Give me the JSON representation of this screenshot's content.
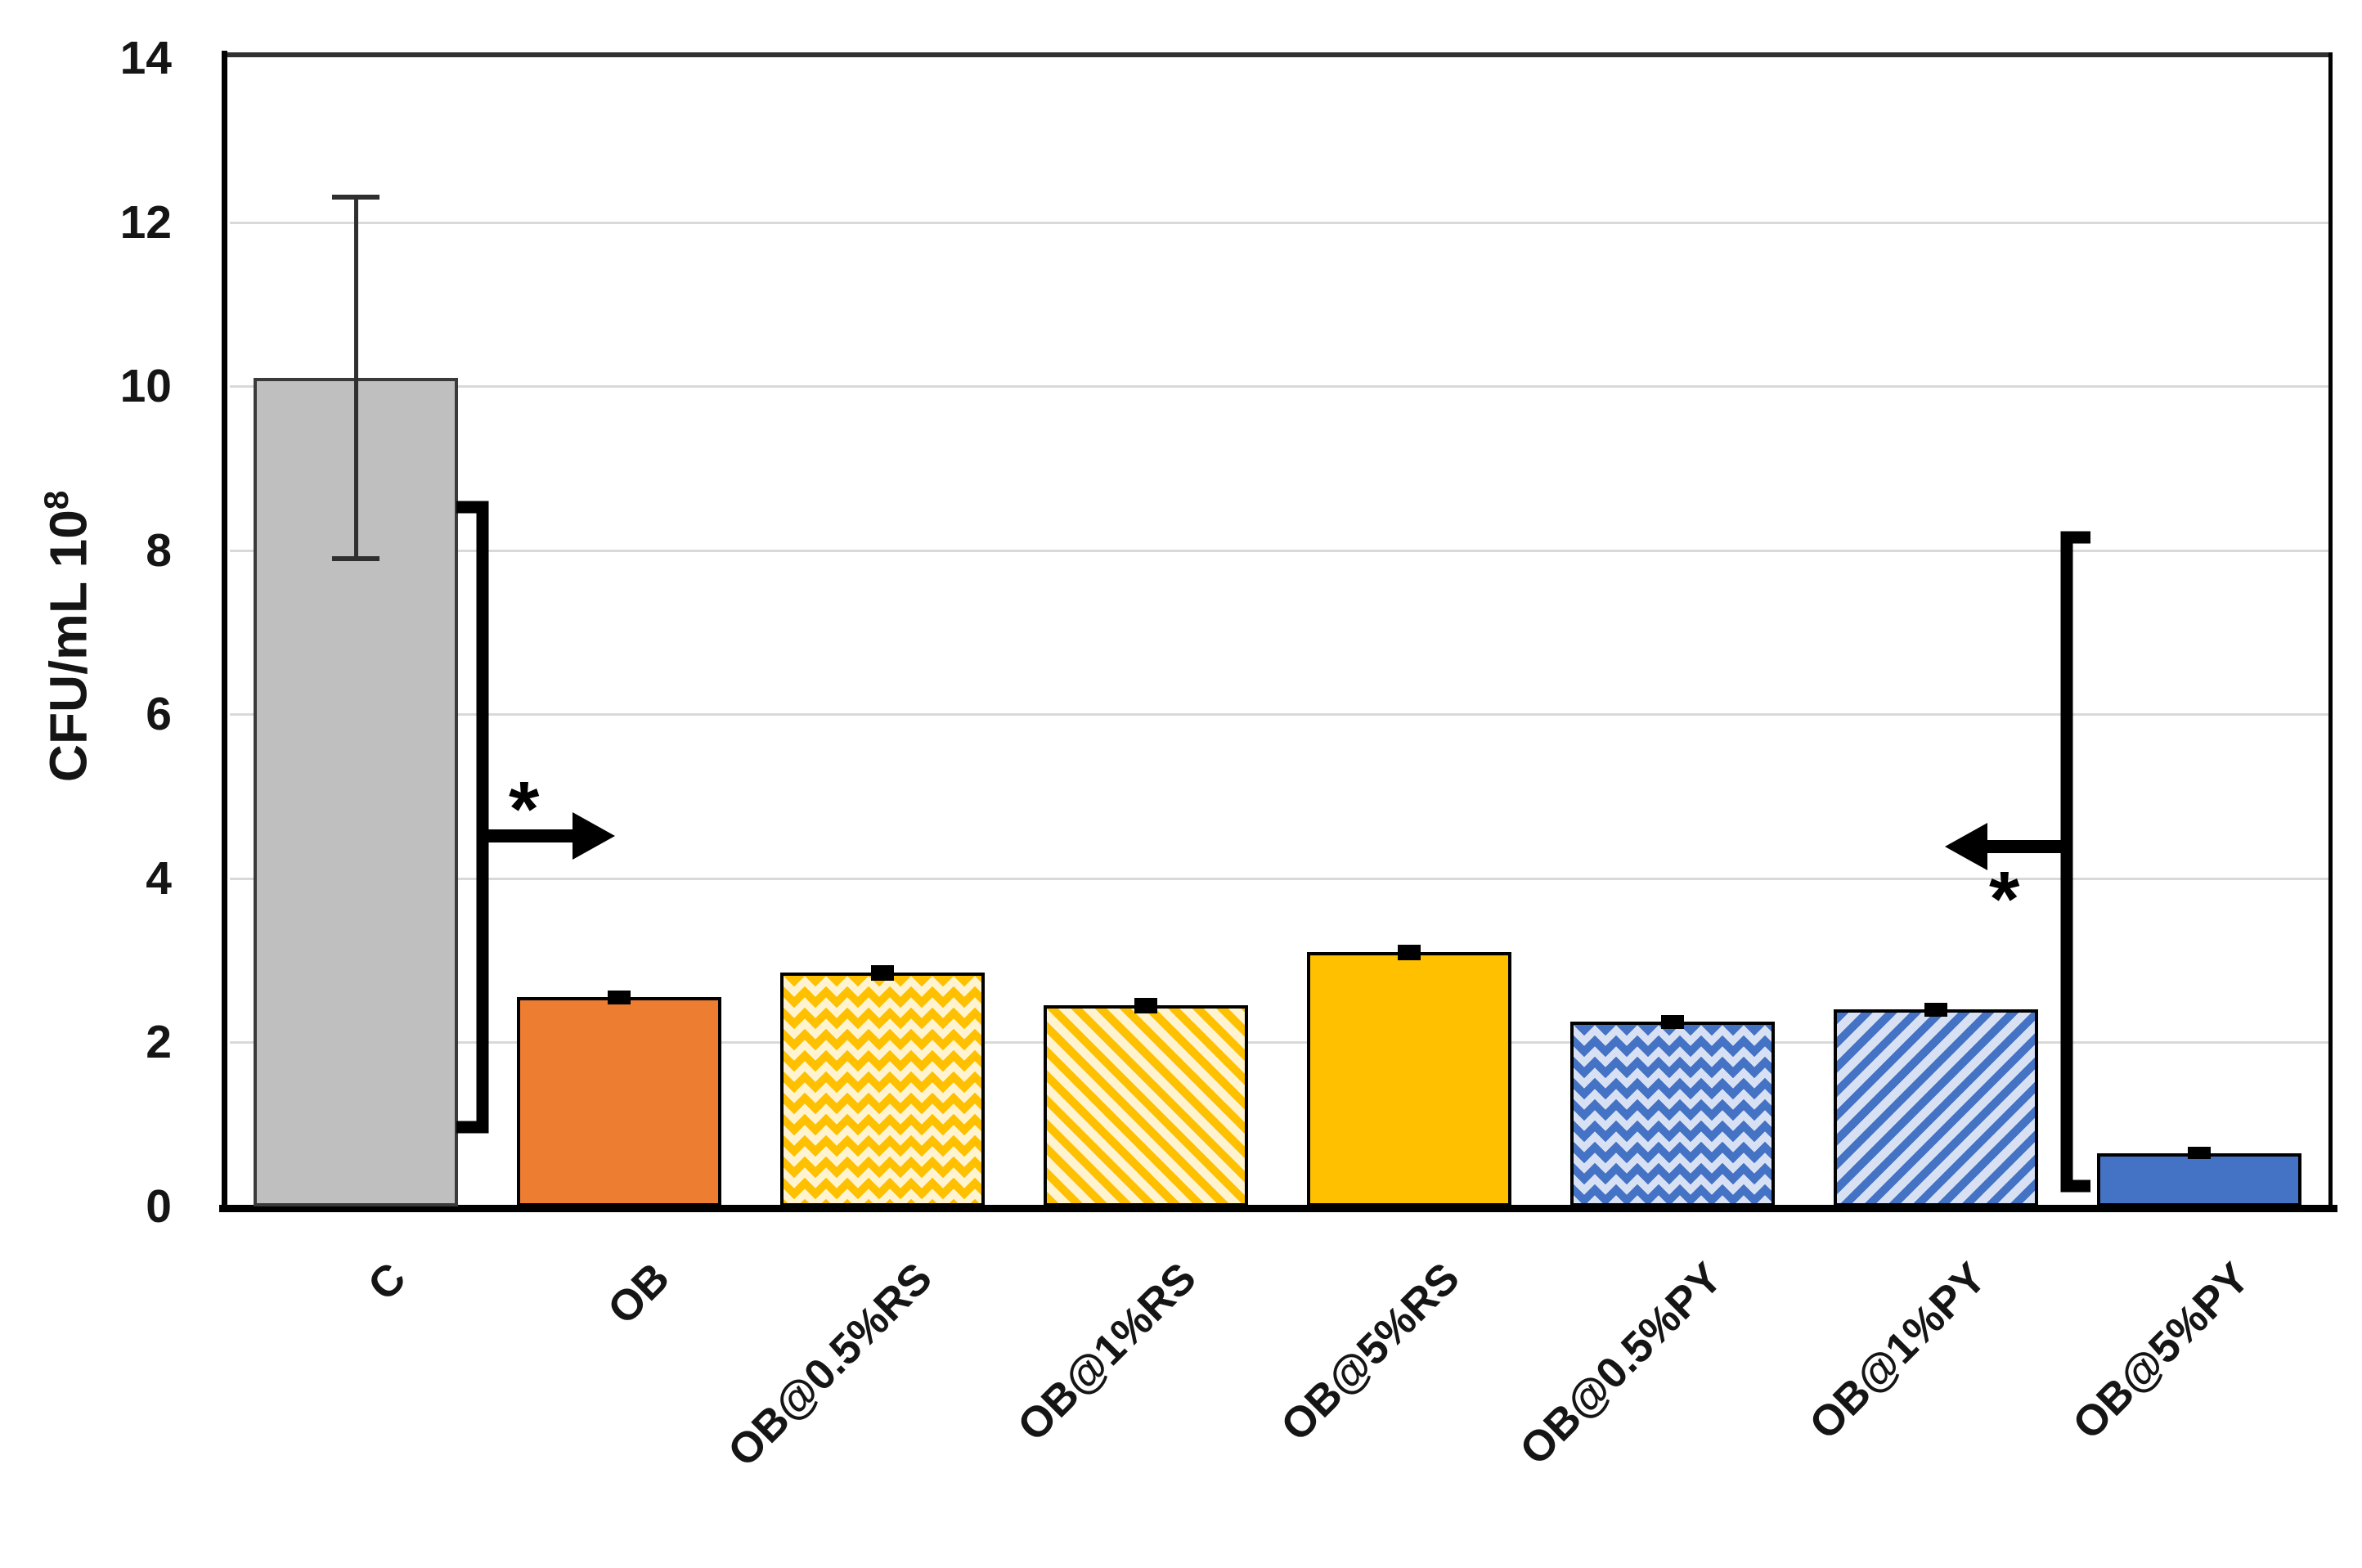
{
  "chart_data": {
    "type": "bar",
    "title": "",
    "ylabel": "CFU/mL 10⁸",
    "ylabel_base": "CFU/mL 10",
    "ylabel_exponent": "8",
    "xlabel": "",
    "ylim": [
      0,
      14
    ],
    "yticks": [
      0,
      2,
      4,
      6,
      8,
      10,
      12,
      14
    ],
    "grid": "horizontal",
    "legend": "none",
    "categories": [
      "C",
      "OB",
      "OB@0.5%RS",
      "OB@1%RS",
      "OB@5%RS",
      "OB@0.5%PY",
      "OB@1%PY",
      "OB@5%PY"
    ],
    "values": [
      10.1,
      2.55,
      2.85,
      2.45,
      3.1,
      2.25,
      2.4,
      0.65
    ],
    "errors": [
      2.2,
      0.04,
      0.05,
      0.05,
      0.05,
      0.04,
      0.04,
      0.03
    ],
    "bar_styles": [
      {
        "pattern": "solid",
        "fill": "#BFBFBF",
        "bg": "#BFBFBF",
        "border": "#3a3a3a"
      },
      {
        "pattern": "solid",
        "fill": "#ED7D31",
        "bg": "#ED7D31",
        "border": "#000000"
      },
      {
        "pattern": "diamond",
        "fill": "#FFC000",
        "bg": "#FFF3D0",
        "border": "#000000"
      },
      {
        "pattern": "stripe-down",
        "fill": "#FFC000",
        "bg": "#FFF3D0",
        "border": "#000000"
      },
      {
        "pattern": "solid",
        "fill": "#FFC000",
        "bg": "#FFC000",
        "border": "#000000"
      },
      {
        "pattern": "diamond",
        "fill": "#4472C4",
        "bg": "#D8E1F3",
        "border": "#000000"
      },
      {
        "pattern": "stripe-up",
        "fill": "#4472C4",
        "bg": "#D8E1F3",
        "border": "#000000"
      },
      {
        "pattern": "solid",
        "fill": "#4472C4",
        "bg": "#4472C4",
        "border": "#000000"
      }
    ],
    "annotations": [
      {
        "symbol": "*",
        "shape": "bracket",
        "side": "after C bar",
        "arrow_direction": "right",
        "bracket_span_values": [
          0.95,
          8.6
        ]
      },
      {
        "symbol": "*",
        "shape": "bracket",
        "side": "before OB@5%PY bar",
        "arrow_direction": "left",
        "bracket_span_values": [
          0.2,
          8.2
        ]
      }
    ],
    "colors": {
      "gray": "#BFBFBF",
      "orange": "#ED7D31",
      "gold": "#FFC000",
      "blue": "#4472C4",
      "cream_bg": "#FFF3D0",
      "light_blue_bg": "#D8E1F3",
      "gridline": "#D9D9D9",
      "axis": "#000000"
    }
  }
}
